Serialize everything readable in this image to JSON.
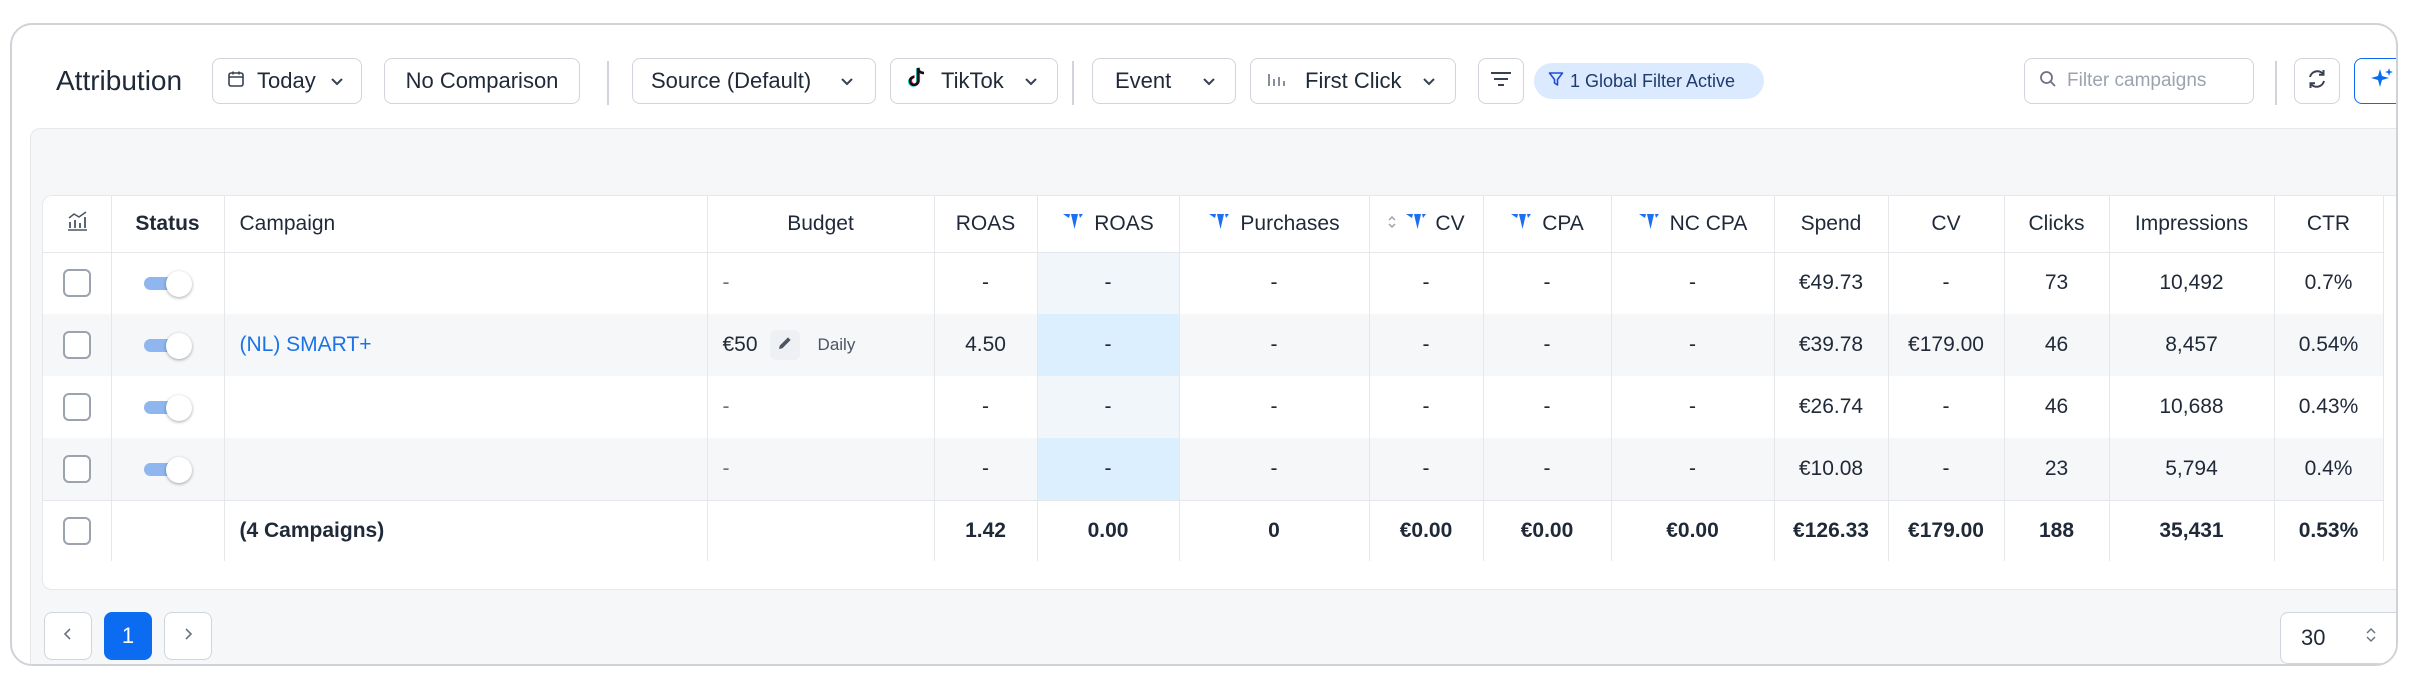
{
  "toolbar": {
    "title": "Attribution",
    "date_label": "Today",
    "comparison_label": "No Comparison",
    "source_label": "Source (Default)",
    "platform_label": "TikTok",
    "event_label": "Event",
    "model_label": "First Click",
    "filter_chip_label": "1 Global Filter Active",
    "search_placeholder": "Filter campaigns"
  },
  "table": {
    "headers": {
      "status": "Status",
      "campaign": "Campaign",
      "budget": "Budget",
      "roas": "ROAS",
      "tw_roas": "ROAS",
      "purchases": "Purchases",
      "cv": "CV",
      "cpa": "CPA",
      "nc_cpa": "NC CPA",
      "spend": "Spend",
      "cv2": "CV",
      "clicks": "Clicks",
      "impressions": "Impressions",
      "ctr": "CTR"
    },
    "rows": [
      {
        "campaign": "",
        "budget": "-",
        "roas": "-",
        "tw_roas": "-",
        "purchases": "-",
        "cv": "-",
        "cpa": "-",
        "nc_cpa": "-",
        "spend": "€49.73",
        "cv2": "-",
        "clicks": "73",
        "impressions": "10,492",
        "ctr": "0.7%"
      },
      {
        "campaign": "(NL) SMART+",
        "budget_amount": "€50",
        "budget_period": "Daily",
        "roas": "4.50",
        "tw_roas": "-",
        "purchases": "-",
        "cv": "-",
        "cpa": "-",
        "nc_cpa": "-",
        "spend": "€39.78",
        "cv2": "€179.00",
        "clicks": "46",
        "impressions": "8,457",
        "ctr": "0.54%"
      },
      {
        "campaign": "",
        "budget": "-",
        "roas": "-",
        "tw_roas": "-",
        "purchases": "-",
        "cv": "-",
        "cpa": "-",
        "nc_cpa": "-",
        "spend": "€26.74",
        "cv2": "-",
        "clicks": "46",
        "impressions": "10,688",
        "ctr": "0.43%"
      },
      {
        "campaign": "",
        "budget": "-",
        "roas": "-",
        "tw_roas": "-",
        "purchases": "-",
        "cv": "-",
        "cpa": "-",
        "nc_cpa": "-",
        "spend": "€10.08",
        "cv2": "-",
        "clicks": "23",
        "impressions": "5,794",
        "ctr": "0.4%"
      }
    ],
    "total": {
      "campaign": "(4 Campaigns)",
      "roas": "1.42",
      "tw_roas": "0.00",
      "purchases": "0",
      "cv": "€0.00",
      "cpa": "€0.00",
      "nc_cpa": "€0.00",
      "spend": "€126.33",
      "cv2": "€179.00",
      "clicks": "188",
      "impressions": "35,431",
      "ctr": "0.53%"
    }
  },
  "pagination": {
    "current_page": "1",
    "per_page": "30"
  },
  "colors": {
    "accent": "#0b6cf2",
    "link": "#1a73e8",
    "chip_bg": "#dbeafe",
    "roas_highlight": "#dcefff"
  }
}
